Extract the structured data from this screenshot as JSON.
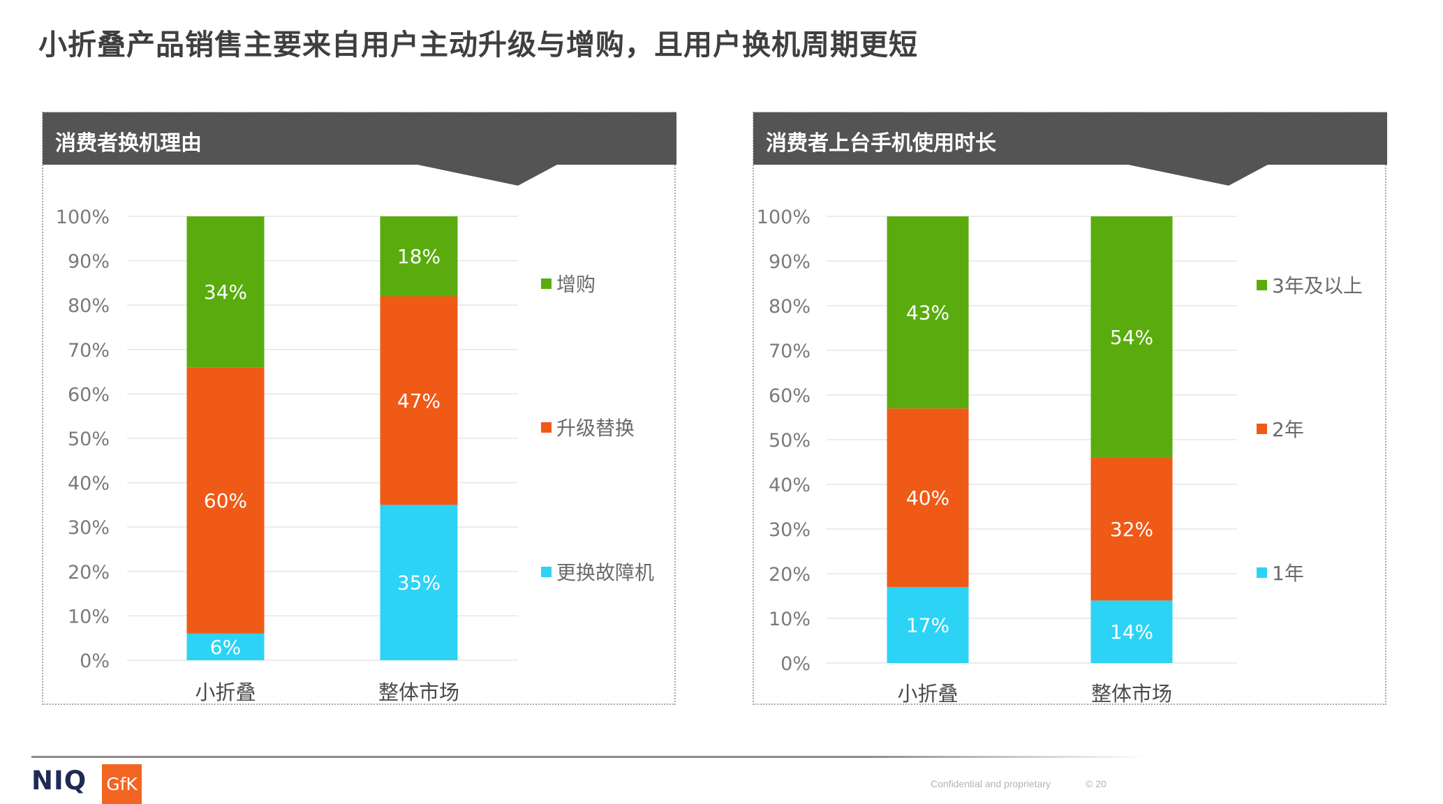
{
  "page": {
    "title": "小折叠产品销售主要来自用户主动升级与增购，且用户换机周期更短"
  },
  "colors": {
    "green": "#5aac0e",
    "orange": "#ef5a17",
    "cyan": "#2dd3f5",
    "header": "#545454",
    "grid": "#e6e6e6",
    "text": "#5a5a5a"
  },
  "footer": {
    "logo_niq": "NIQ",
    "logo_gfk": "GfK",
    "confidential": "Confidential and proprietary",
    "copyright": "© 20"
  },
  "chart_data": [
    {
      "type": "bar",
      "stacked": true,
      "percent": true,
      "title": "消费者换机理由",
      "categories": [
        "小折叠",
        "整体市场"
      ],
      "ylim": [
        0,
        100
      ],
      "yticks": [
        "0%",
        "10%",
        "20%",
        "30%",
        "40%",
        "50%",
        "60%",
        "70%",
        "80%",
        "90%",
        "100%"
      ],
      "grid": true,
      "legend": "right",
      "series": [
        {
          "name": "更换故障机",
          "color": "#2dd3f5",
          "values": [
            6,
            35
          ]
        },
        {
          "name": "升级替换",
          "color": "#ef5a17",
          "values": [
            60,
            47
          ]
        },
        {
          "name": "增购",
          "color": "#5aac0e",
          "values": [
            34,
            18
          ]
        }
      ]
    },
    {
      "type": "bar",
      "stacked": true,
      "percent": true,
      "title": "消费者上台手机使用时长",
      "categories": [
        "小折叠",
        "整体市场"
      ],
      "ylim": [
        0,
        100
      ],
      "yticks": [
        "0%",
        "10%",
        "20%",
        "30%",
        "40%",
        "50%",
        "60%",
        "70%",
        "80%",
        "90%",
        "100%"
      ],
      "grid": true,
      "legend": "right",
      "series": [
        {
          "name": "1年",
          "color": "#2dd3f5",
          "values": [
            17,
            14
          ]
        },
        {
          "name": "2年",
          "color": "#ef5a17",
          "values": [
            40,
            32
          ]
        },
        {
          "name": "3年及以上",
          "color": "#5aac0e",
          "values": [
            43,
            54
          ]
        }
      ]
    }
  ]
}
